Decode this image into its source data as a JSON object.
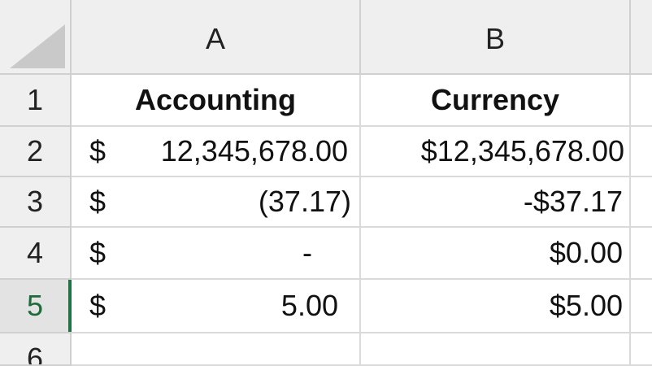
{
  "columns": [
    {
      "label": "A"
    },
    {
      "label": "B"
    }
  ],
  "rows": [
    {
      "number": "1",
      "a": {
        "text": "Accounting"
      },
      "b": {
        "text": "Currency"
      }
    },
    {
      "number": "2",
      "a": {
        "symbol": "$",
        "value": "12,345,678.00"
      },
      "b": {
        "text": "$12,345,678.00"
      }
    },
    {
      "number": "3",
      "a": {
        "symbol": "$",
        "value": "(37.17)"
      },
      "b": {
        "text": "-$37.17"
      }
    },
    {
      "number": "4",
      "a": {
        "symbol": "$",
        "value": "-"
      },
      "b": {
        "text": "$0.00"
      }
    },
    {
      "number": "5",
      "a": {
        "symbol": "$",
        "value": "5.00"
      },
      "b": {
        "text": "$5.00"
      }
    },
    {
      "number": "6"
    }
  ],
  "selected_row": "5",
  "colors": {
    "header_bg": "#efefef",
    "selection_accent": "#217346",
    "selected_row_text": "#1e6b3a"
  }
}
